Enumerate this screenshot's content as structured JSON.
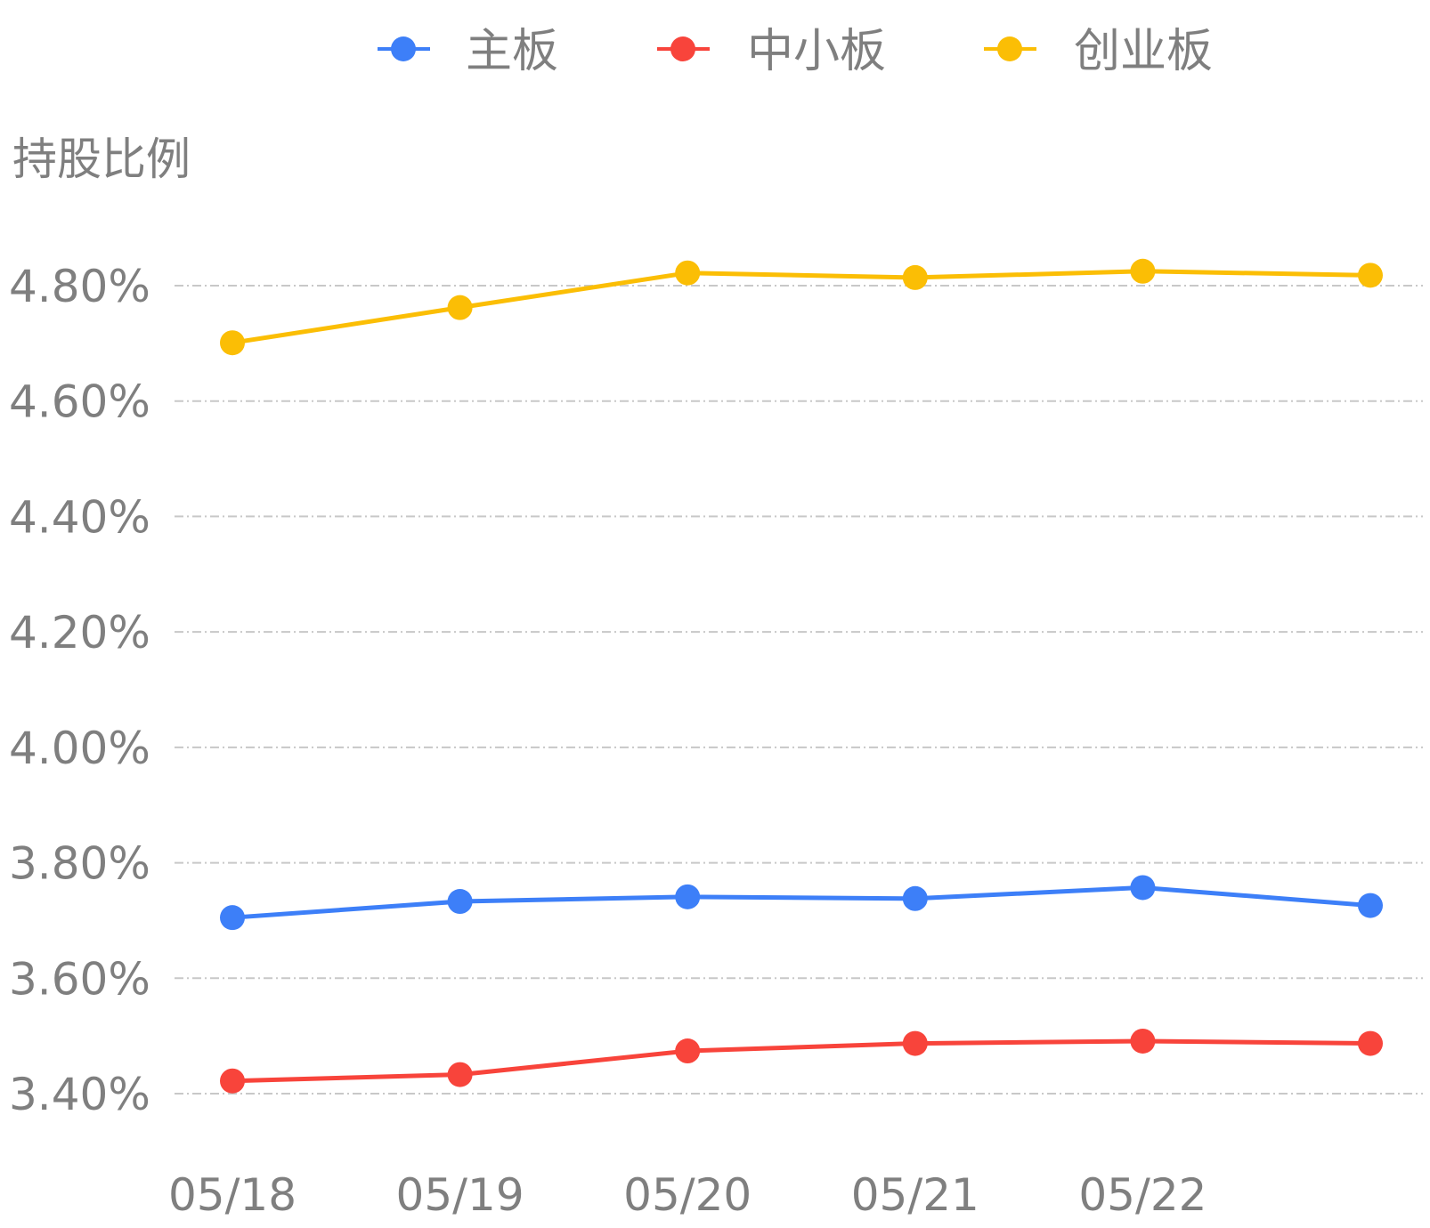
{
  "chart_data": {
    "type": "line",
    "ylabel": "持股比例",
    "categories": [
      "05/18",
      "05/19",
      "05/20",
      "05/21",
      "05/22",
      ""
    ],
    "x_tick_labels": [
      "05/18",
      "05/19",
      "05/20",
      "05/21",
      "05/22"
    ],
    "y_tick_labels": [
      "4.80%",
      "4.60%",
      "4.40%",
      "4.20%",
      "4.00%",
      "3.80%",
      "3.60%",
      "3.40%"
    ],
    "y_ticks": [
      4.8,
      4.6,
      4.4,
      4.2,
      4.0,
      3.8,
      3.6,
      3.4
    ],
    "ylim": [
      3.4,
      4.8
    ],
    "grid": true,
    "legend_position": "top-center",
    "series": [
      {
        "name": "主板",
        "color": "#3d7ff8",
        "values": [
          3.705,
          3.733,
          3.741,
          3.738,
          3.757,
          3.726
        ]
      },
      {
        "name": "中小板",
        "color": "#f8443b",
        "values": [
          3.422,
          3.433,
          3.474,
          3.487,
          3.491,
          3.487
        ]
      },
      {
        "name": "创业板",
        "color": "#fbbe05",
        "values": [
          4.701,
          4.762,
          4.822,
          4.814,
          4.825,
          4.818
        ]
      }
    ]
  }
}
